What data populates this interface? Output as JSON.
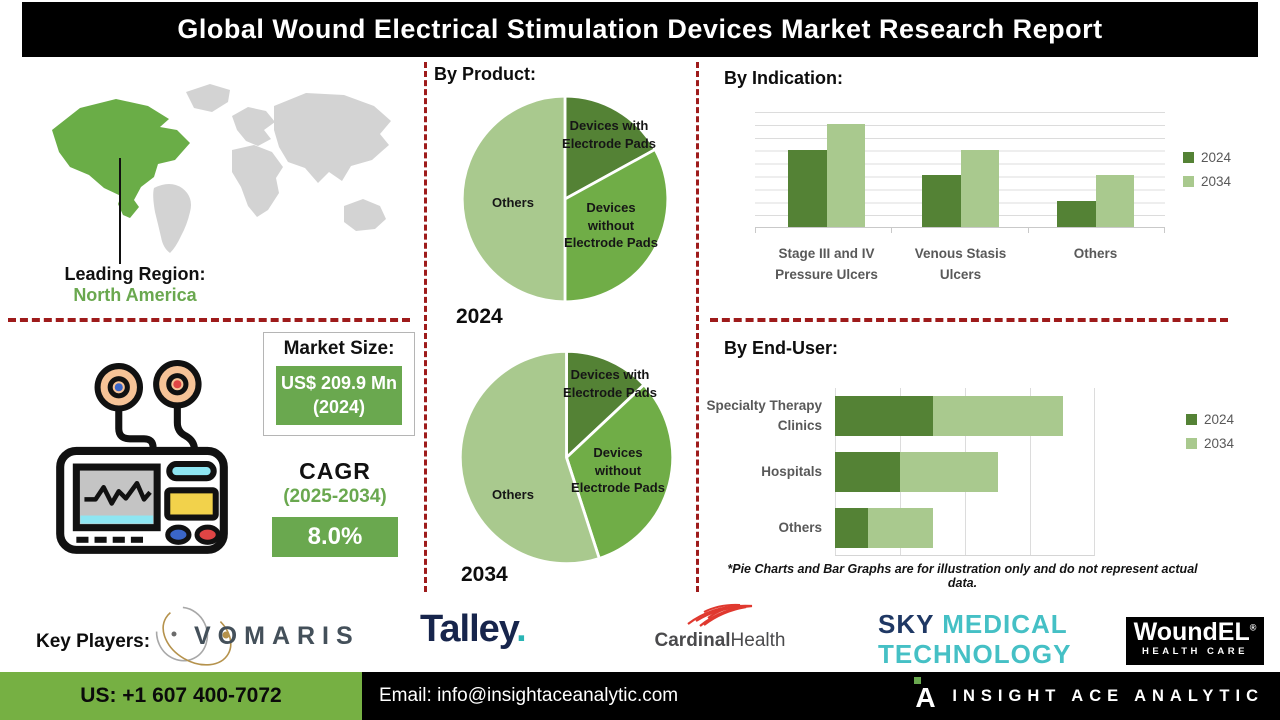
{
  "title": "Global Wound Electrical Stimulation Devices Market Research Report",
  "colors": {
    "green_dark": "#548235",
    "green_mid": "#70ad47",
    "green_light": "#a9c98e",
    "accent_green": "#6aa84f",
    "separator_red": "#9e1b1b",
    "footer_green": "#76b043",
    "map_gray": "#d3d3d3",
    "map_highlight": "#6aad47"
  },
  "leading_region": {
    "label": "Leading Region:",
    "value": "North America"
  },
  "market_size": {
    "label": "Market Size:",
    "value": "US$ 209.9 Mn (2024)"
  },
  "cagr": {
    "label": "CAGR",
    "period": "(2025-2034)",
    "value": "8.0%"
  },
  "sections": {
    "by_product": "By Product:",
    "by_indication": "By Indication:",
    "by_end_user": "By End-User:"
  },
  "chart_data": [
    {
      "type": "pie",
      "title": "By Product 2024",
      "year_label": "2024",
      "segments": [
        {
          "label": "Devices with Electrode Pads",
          "value": 17,
          "color": "#548235"
        },
        {
          "label": "Devices without Electrode Pads",
          "value": 33,
          "color": "#70ad47"
        },
        {
          "label": "Others",
          "value": 50,
          "color": "#a9c98e"
        }
      ],
      "note": "illustrative proportions, starts at 12 o'clock, clockwise"
    },
    {
      "type": "pie",
      "title": "By Product 2034",
      "year_label": "2034",
      "segments": [
        {
          "label": "Devices with Electrode Pads",
          "value": 13,
          "color": "#548235"
        },
        {
          "label": "Devices without Electrode Pads",
          "value": 32,
          "color": "#70ad47"
        },
        {
          "label": "Others",
          "value": 55,
          "color": "#a9c98e"
        }
      ],
      "note": "illustrative proportions, starts at 12 o'clock, clockwise"
    },
    {
      "type": "bar",
      "title": "By Indication",
      "categories": [
        [
          "Stage III and IV",
          "Pressure Ulcers"
        ],
        [
          "Venous Stasis",
          "Ulcers"
        ],
        [
          "Others"
        ]
      ],
      "series": [
        {
          "name": "2024",
          "color": "#548235",
          "values": [
            60,
            40,
            20
          ]
        },
        {
          "name": "2034",
          "color": "#a9c98e",
          "values": [
            80,
            60,
            40
          ]
        }
      ],
      "ylim": [
        0,
        90
      ],
      "grid": "horizontal",
      "legend_position": "right"
    },
    {
      "type": "bar",
      "subtype": "horizontal-stacked",
      "title": "By End-User",
      "categories": [
        [
          "Specialty Therapy",
          "Clinics"
        ],
        [
          "Hospitals"
        ],
        [
          "Others"
        ]
      ],
      "series": [
        {
          "name": "2024",
          "color": "#548235",
          "values": [
            15,
            10,
            5
          ]
        },
        {
          "name": "2034",
          "color": "#a9c98e",
          "values": [
            20,
            15,
            10
          ]
        }
      ],
      "xlim": [
        0,
        40
      ],
      "grid": "vertical",
      "legend_position": "right"
    }
  ],
  "disclaimer": "*Pie Charts and Bar Graphs are for illustration only and do not represent actual data.",
  "key_players": {
    "label": "Key Players:",
    "vomaris": {
      "text": "VOMARIS"
    },
    "talley": {
      "text": "Talley",
      "dot": "."
    },
    "cardinal": {
      "part1": "Cardinal",
      "part2": "Health"
    },
    "sky": {
      "word1": "SKY",
      "word2": "MEDICAL",
      "word3": "TECHNOLOGY"
    },
    "woundel": {
      "main": "WoundEL",
      "reg": "®",
      "sub": "HEALTH CARE"
    }
  },
  "footer": {
    "phone": "US: +1 607 400-7072",
    "email": "Email: info@insightaceanalytic.com",
    "brand": "INSIGHT ACE ANALYTIC"
  }
}
